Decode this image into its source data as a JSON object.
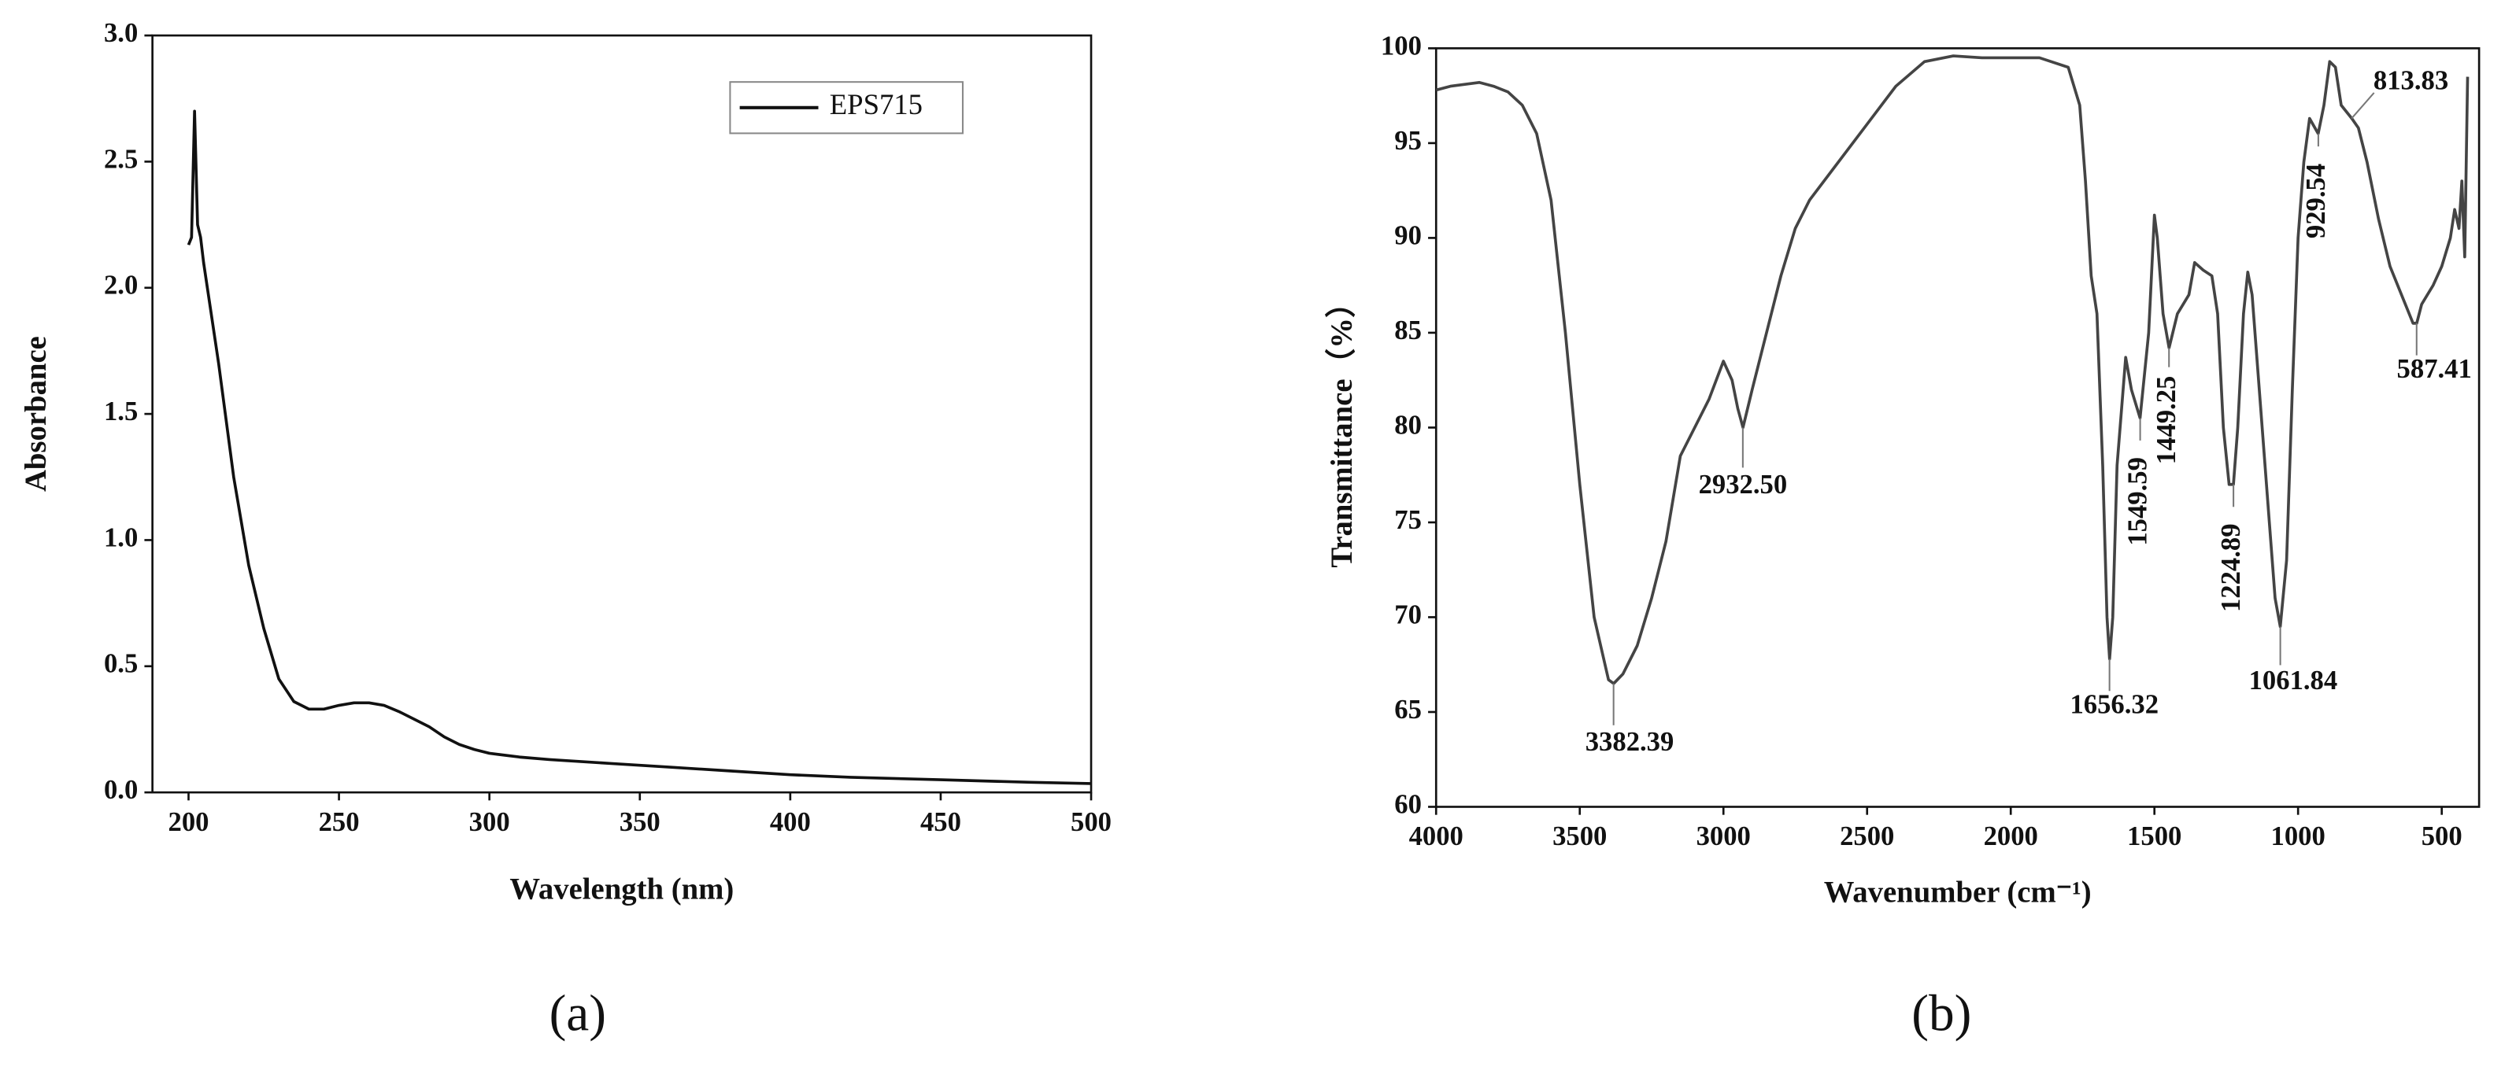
{
  "chart_data": [
    {
      "type": "line",
      "panel": "(a)",
      "xlabel": "Wavelength (nm)",
      "ylabel": "Absorbance",
      "xlim": [
        188,
        500
      ],
      "ylim": [
        0,
        3.0
      ],
      "xticks": [
        200,
        250,
        300,
        350,
        400,
        450,
        500
      ],
      "yticks": [
        {
          "value": 0,
          "label": "0.0"
        },
        0.5,
        {
          "value": 1,
          "label": "1.0"
        },
        1.5,
        {
          "value": 2,
          "label": "2.0"
        },
        2.5,
        {
          "value": 3,
          "label": "3.0"
        }
      ],
      "legend": "upper right",
      "x": [
        200,
        201,
        202,
        203,
        204,
        205,
        210,
        215,
        220,
        225,
        230,
        235,
        240,
        245,
        250,
        255,
        260,
        265,
        270,
        275,
        280,
        285,
        290,
        295,
        300,
        310,
        320,
        340,
        360,
        380,
        400,
        420,
        450,
        480,
        500
      ],
      "series": [
        {
          "name": "EPS715",
          "color": "#111111",
          "values": [
            2.17,
            2.2,
            2.7,
            2.25,
            2.2,
            2.1,
            1.7,
            1.25,
            0.9,
            0.65,
            0.45,
            0.36,
            0.33,
            0.33,
            0.345,
            0.355,
            0.355,
            0.345,
            0.32,
            0.29,
            0.26,
            0.22,
            0.19,
            0.17,
            0.155,
            0.14,
            0.13,
            0.115,
            0.1,
            0.085,
            0.07,
            0.06,
            0.05,
            0.04,
            0.035
          ]
        }
      ]
    },
    {
      "type": "line",
      "panel": "(b)",
      "xlabel": "Wavenumber (cm⁻¹)",
      "ylabel": "Transmittance（%）",
      "xlim": [
        4000,
        370
      ],
      "ylim": [
        60,
        100
      ],
      "xticks": [
        4000,
        3500,
        3000,
        2500,
        2000,
        1500,
        1000,
        500
      ],
      "yticks": [
        60,
        65,
        70,
        75,
        80,
        85,
        90,
        95,
        100
      ],
      "x": [
        4000,
        3950,
        3900,
        3850,
        3800,
        3750,
        3700,
        3650,
        3600,
        3550,
        3500,
        3450,
        3400,
        3382,
        3350,
        3300,
        3250,
        3200,
        3150,
        3100,
        3050,
        3000,
        2970,
        2950,
        2932,
        2900,
        2850,
        2800,
        2750,
        2700,
        2600,
        2500,
        2400,
        2300,
        2200,
        2100,
        2000,
        1900,
        1800,
        1760,
        1740,
        1720,
        1700,
        1680,
        1665,
        1656,
        1645,
        1630,
        1600,
        1580,
        1550,
        1520,
        1500,
        1490,
        1470,
        1449,
        1420,
        1400,
        1380,
        1360,
        1330,
        1300,
        1280,
        1260,
        1240,
        1225,
        1210,
        1190,
        1175,
        1160,
        1130,
        1100,
        1080,
        1062,
        1040,
        1020,
        1000,
        980,
        960,
        930,
        910,
        890,
        870,
        850,
        813,
        790,
        760,
        720,
        680,
        640,
        600,
        587,
        570,
        550,
        530,
        500,
        470,
        455,
        440,
        430,
        420,
        410
      ],
      "series": [
        {
          "color": "#444444",
          "values": [
            97.8,
            98,
            98.1,
            98.2,
            98,
            97.7,
            97,
            95.5,
            92,
            85,
            77,
            70,
            66.7,
            66.5,
            67,
            68.5,
            71,
            74,
            78.5,
            80,
            81.5,
            83.5,
            82.5,
            81,
            80,
            82,
            85,
            88,
            90.5,
            92,
            94,
            96,
            98,
            99.3,
            99.6,
            99.5,
            99.5,
            99.5,
            99,
            97,
            93,
            88,
            86,
            78,
            70,
            67.8,
            70,
            78,
            83.7,
            82,
            80.5,
            85,
            91.2,
            90,
            86,
            84.2,
            86,
            86.5,
            87,
            88.7,
            88.3,
            88,
            86,
            80,
            77,
            77,
            80,
            86,
            88.2,
            87,
            81,
            75,
            71,
            69.5,
            73,
            82,
            90,
            94,
            96.3,
            95.5,
            97,
            99.3,
            99,
            97,
            96.3,
            95.8,
            94,
            91,
            88.5,
            87,
            85.5,
            85.5,
            86.5,
            87,
            87.5,
            88.5,
            90,
            91.5,
            90.5,
            93,
            89,
            98.5
          ]
        }
      ],
      "annotations": [
        {
          "text": "3382.39",
          "x": 3382.39,
          "y": 66.5
        },
        {
          "text": "2932.50",
          "x": 2932.5,
          "y": 80
        },
        {
          "text": "1549.59",
          "x": 1549.59,
          "y": 80.5
        },
        {
          "text": "1449.25",
          "x": 1449.25,
          "y": 84.2
        },
        {
          "text": "1656.32",
          "x": 1656.32,
          "y": 67.8
        },
        {
          "text": "1224.89",
          "x": 1224.89,
          "y": 77
        },
        {
          "text": "1061.84",
          "x": 1061.84,
          "y": 69.5
        },
        {
          "text": "929.54",
          "x": 929.54,
          "y": 95.5
        },
        {
          "text": "813.83",
          "x": 813.83,
          "y": 96.3
        },
        {
          "text": "587.41",
          "x": 587.41,
          "y": 85.5
        }
      ]
    }
  ]
}
